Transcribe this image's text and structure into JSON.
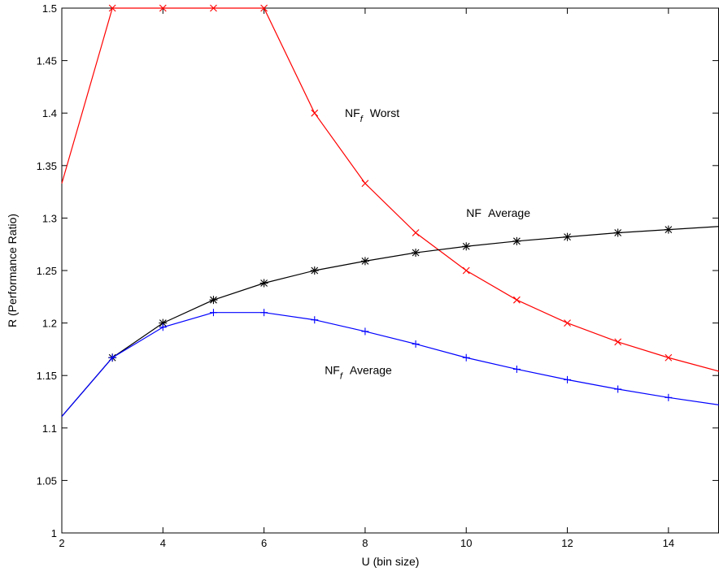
{
  "chart_data": {
    "type": "line",
    "title": "",
    "xlabel": "U (bin size)",
    "ylabel": "R (Performance Ratio)",
    "xlim": [
      2,
      15
    ],
    "ylim": [
      1,
      1.5
    ],
    "grid": false,
    "xticks": [
      2,
      4,
      6,
      8,
      10,
      12,
      14
    ],
    "yticks": [
      1,
      1.05,
      1.1,
      1.15,
      1.2,
      1.25,
      1.3,
      1.35,
      1.4,
      1.45,
      1.5
    ],
    "series": [
      {
        "name": "NF Worst",
        "color": "#ff0000",
        "marker": "x",
        "x": [
          2,
          3,
          4,
          5,
          6,
          7,
          8,
          9,
          10,
          11,
          12,
          13,
          14,
          15
        ],
        "y": [
          1.333,
          1.5,
          1.5,
          1.5,
          1.5,
          1.4,
          1.333,
          1.286,
          1.25,
          1.222,
          1.2,
          1.182,
          1.167,
          1.154
        ],
        "markers_at": [
          3,
          4,
          5,
          6,
          7,
          8,
          9,
          10,
          11,
          12,
          13,
          14
        ]
      },
      {
        "name": "NF Average",
        "color": "#000000",
        "marker": "*",
        "x": [
          2,
          3,
          4,
          5,
          6,
          7,
          8,
          9,
          10,
          11,
          12,
          13,
          14,
          15
        ],
        "y": [
          1.111,
          1.167,
          1.2,
          1.222,
          1.238,
          1.25,
          1.259,
          1.267,
          1.273,
          1.278,
          1.282,
          1.286,
          1.289,
          1.292
        ],
        "markers_at": [
          3,
          4,
          5,
          6,
          7,
          8,
          9,
          10,
          11,
          12,
          13,
          14
        ]
      },
      {
        "name": "NF Average",
        "color": "#0000ff",
        "marker": "+",
        "x": [
          2,
          3,
          4,
          5,
          6,
          7,
          8,
          9,
          10,
          11,
          12,
          13,
          14,
          15
        ],
        "y": [
          1.111,
          1.167,
          1.196,
          1.21,
          1.21,
          1.203,
          1.192,
          1.18,
          1.167,
          1.156,
          1.146,
          1.137,
          1.129,
          1.122
        ],
        "markers_at": [
          3,
          4,
          5,
          6,
          7,
          8,
          9,
          10,
          11,
          12,
          13,
          14
        ]
      }
    ],
    "annotations": [
      {
        "id": "nff-worst",
        "main": "NF",
        "sub": "f",
        "rest": "Worst",
        "x": 7.6,
        "y": 1.4
      },
      {
        "id": "nf-average",
        "main": "NF",
        "sub": "",
        "rest": "Average",
        "x": 10.0,
        "y": 1.305
      },
      {
        "id": "nff-average",
        "main": "NF",
        "sub": "f",
        "rest": "Average",
        "x": 7.2,
        "y": 1.155
      }
    ]
  }
}
